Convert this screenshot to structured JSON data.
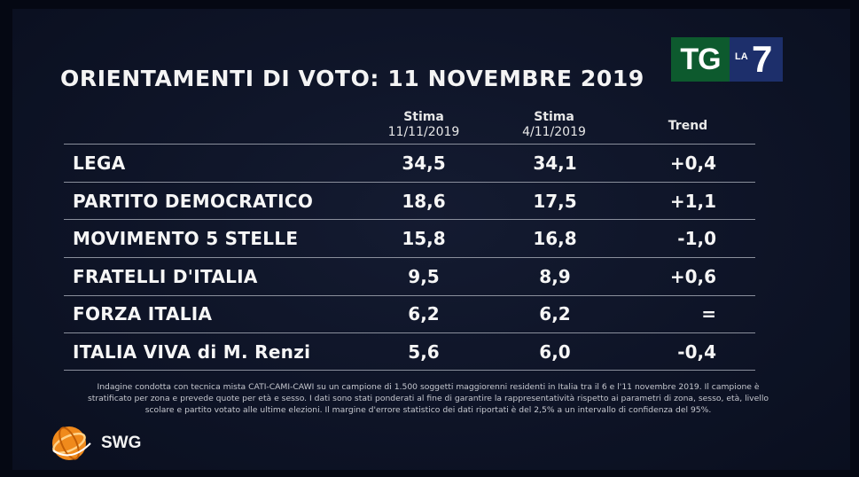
{
  "header": {
    "title": "ORIENTAMENTI DI VOTO: 11 NOVEMBRE 2019",
    "logo_tg": "TG",
    "logo_la": "LA",
    "logo_seven": "7"
  },
  "columns": {
    "stima1_label": "Stima",
    "stima1_date": "11/11/2019",
    "stima2_label": "Stima",
    "stima2_date": "4/11/2019",
    "trend_label": "Trend"
  },
  "chart_data": {
    "type": "table",
    "columns": [
      "Stima 11/11/2019",
      "Stima 4/11/2019",
      "Trend"
    ],
    "rows": [
      {
        "party": "LEGA",
        "stima_11_11": "34,5",
        "stima_4_11": "34,1",
        "trend": "+0,4"
      },
      {
        "party": "PARTITO DEMOCRATICO",
        "stima_11_11": "18,6",
        "stima_4_11": "17,5",
        "trend": "+1,1"
      },
      {
        "party": "MOVIMENTO 5 STELLE",
        "stima_11_11": "15,8",
        "stima_4_11": "16,8",
        "trend": "-1,0"
      },
      {
        "party": "FRATELLI D'ITALIA",
        "stima_11_11": "9,5",
        "stima_4_11": "8,9",
        "trend": "+0,6"
      },
      {
        "party": "FORZA ITALIA",
        "stima_11_11": "6,2",
        "stima_4_11": "6,2",
        "trend": "="
      },
      {
        "party": "ITALIA VIVA di M. Renzi",
        "stima_11_11": "5,6",
        "stima_4_11": "6,0",
        "trend": "-0,4"
      }
    ]
  },
  "footnote": {
    "line1": "Indagine condotta con tecnica mista CATI-CAMI-CAWI su un campione di 1.500 soggetti maggiorenni residenti in Italia tra il 6 e l'11 novembre 2019. Il campione è",
    "line2": "stratificato per zona e prevede quote per età e sesso. I dati sono stati ponderati al fine di garantire la rappresentatività rispetto ai parametri di zona, sesso, età, livello",
    "line3": "scolare e partito votato alle ultime elezioni. Il margine d'errore statistico dei dati riportati è del 2,5% a un intervallo di confidenza del 95%."
  },
  "brand": {
    "name": "SWG",
    "globe_color": "#f08a1c"
  },
  "colors": {
    "background": "#0e1427",
    "text": "#f6f6f6",
    "tg_green": "#0d5a2e",
    "la7_blue": "#1d2f6b"
  }
}
